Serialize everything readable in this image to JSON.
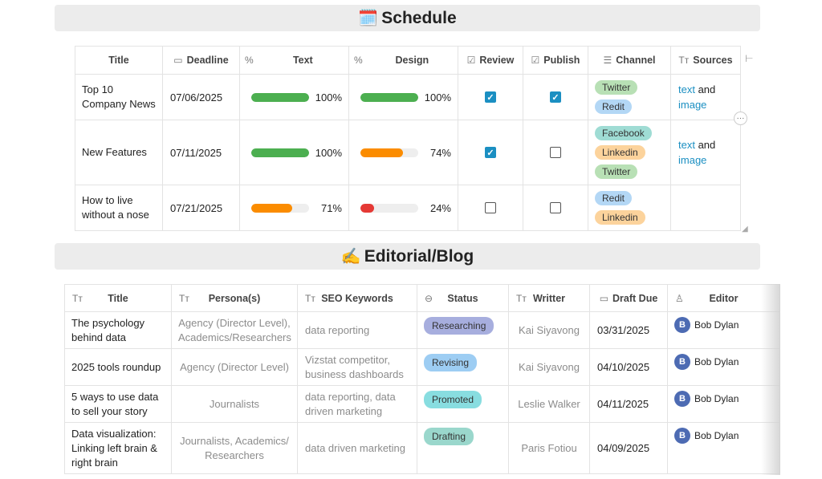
{
  "schedule": {
    "emoji": "🗓️",
    "title": "Schedule",
    "headers": {
      "title": "Title",
      "deadline": "Deadline",
      "text": "Text",
      "design": "Design",
      "review": "Review",
      "publish": "Publish",
      "channel": "Channel",
      "sources": "Sources"
    },
    "rows": [
      {
        "title": "Top 10 Company News",
        "deadline": "07/06/2025",
        "text_pct": 100,
        "text_label": "100%",
        "design_pct": 100,
        "design_label": "100%",
        "review": true,
        "publish": true,
        "channels": [
          "Twitter",
          "Redit"
        ],
        "sources": {
          "link1": "text",
          "and": " and",
          "link2": "image"
        }
      },
      {
        "title": "New Features",
        "deadline": "07/11/2025",
        "text_pct": 100,
        "text_label": "100%",
        "design_pct": 74,
        "design_label": "74%",
        "review": true,
        "publish": false,
        "channels": [
          "Facebook",
          "Linkedin",
          "Twitter"
        ],
        "sources": {
          "link1": "text",
          "and": " and",
          "link2": "image"
        }
      },
      {
        "title": "How to live without a nose",
        "deadline": "07/21/2025",
        "text_pct": 71,
        "text_label": "71%",
        "design_pct": 24,
        "design_label": "24%",
        "review": false,
        "publish": false,
        "channels": [
          "Redit",
          "Linkedin"
        ],
        "sources": null
      }
    ]
  },
  "editorial": {
    "emoji": "✍️",
    "title": "Editorial/Blog",
    "headers": {
      "title": "Title",
      "personas": "Persona(s)",
      "seo": "SEO Keywords",
      "status": "Status",
      "writer": "Writter",
      "draft_due": "Draft Due",
      "editor": "Editor"
    },
    "rows": [
      {
        "title": "The psychology behind data",
        "personas": "Agency (Director Level), Academics/Researchers",
        "seo": "data reporting",
        "status": "Researching",
        "writer": "Kai Siyavong",
        "draft_due": "03/31/2025",
        "editor_initial": "B",
        "editor": "Bob Dylan"
      },
      {
        "title": "2025 tools roundup",
        "personas": "Agency (Director Level)",
        "seo": "Vizstat competitor, business dashboards",
        "status": "Revising",
        "writer": "Kai Siyavong",
        "draft_due": "04/10/2025",
        "editor_initial": "B",
        "editor": "Bob Dylan"
      },
      {
        "title": "5 ways to use data to sell your story",
        "personas": "Journalists",
        "seo": "data reporting, data driven marketing",
        "status": "Promoted",
        "writer": "Leslie Walker",
        "draft_due": "04/11/2025",
        "editor_initial": "B",
        "editor": "Bob Dylan"
      },
      {
        "title": "Data visualization: Linking left brain & right brain",
        "personas": "Journalists, Academics/ Researchers",
        "seo": "data driven marketing",
        "status": "Drafting",
        "writer": "Paris Fotiou",
        "draft_due": "04/09/2025",
        "editor_initial": "B",
        "editor": "Bob Dylan"
      }
    ]
  },
  "colors": {
    "progress_full": "#4caf50",
    "progress_mid": "#fb8c00",
    "progress_low": "#e53935",
    "checkbox_on": "#1b8fc2",
    "tag_twitter": "#b8e0b5",
    "tag_redit": "#b3d7f5",
    "tag_facebook": "#9fdcd4",
    "tag_linkedin": "#fcd39c",
    "status_researching": "#a7aede",
    "status_revising": "#9dcdf3",
    "status_promoted": "#88dde0",
    "status_drafting": "#9ad7cc"
  }
}
